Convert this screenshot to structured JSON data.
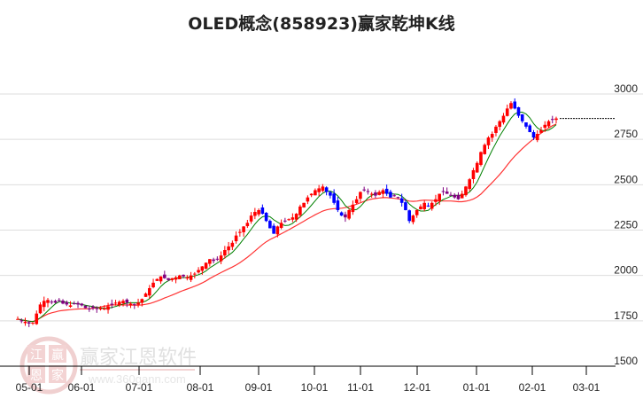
{
  "title": "OLED概念(858923)赢家乾坤K线",
  "watermark": {
    "brand": "赢家江恩软件",
    "url": "www.360gann.com",
    "seal_chars": [
      "江",
      "赢",
      "恩",
      "家"
    ]
  },
  "colors": {
    "up": "#ff0000",
    "down_blue": "#0000ff",
    "down_purple": "#800080",
    "ma_short": "#008000",
    "ma_long": "#ff3333",
    "grid": "#dddddd",
    "axis": "#000000",
    "last_price_line": "#000000"
  },
  "chart_data": {
    "type": "candlestick",
    "title": "OLED概念(858923)赢家乾坤K线",
    "xlabel": "",
    "ylabel": "",
    "ylim": [
      1500,
      3000
    ],
    "yticks": [
      1500,
      1750,
      2000,
      2250,
      2500,
      2750,
      3000
    ],
    "xticks": [
      "05-01",
      "06-01",
      "07-01",
      "08-01",
      "09-01",
      "10-01",
      "11-01",
      "12-01",
      "01-01",
      "02-01",
      "03-01"
    ],
    "grid": true,
    "last_price": 2865,
    "series": [
      {
        "name": "close",
        "values": [
          1760,
          1750,
          1745,
          1735,
          1740,
          1790,
          1840,
          1860,
          1865,
          1855,
          1850,
          1860,
          1845,
          1840,
          1835,
          1845,
          1840,
          1835,
          1820,
          1815,
          1820,
          1815,
          1820,
          1818,
          1830,
          1840,
          1850,
          1855,
          1860,
          1850,
          1845,
          1840,
          1850,
          1870,
          1900,
          1930,
          1960,
          1980,
          1995,
          1985,
          1975,
          1985,
          1990,
          2000,
          1995,
          1990,
          2000,
          2010,
          2030,
          2050,
          2070,
          2090,
          2080,
          2090,
          2110,
          2140,
          2160,
          2180,
          2220,
          2240,
          2270,
          2290,
          2330,
          2350,
          2360,
          2340,
          2300,
          2260,
          2230,
          2270,
          2290,
          2300,
          2310,
          2320,
          2340,
          2380,
          2400,
          2430,
          2450,
          2470,
          2480,
          2490,
          2460,
          2440,
          2400,
          2360,
          2330,
          2320,
          2360,
          2390,
          2420,
          2460,
          2470,
          2460,
          2450,
          2440,
          2460,
          2470,
          2450,
          2430,
          2440,
          2430,
          2400,
          2360,
          2300,
          2330,
          2360,
          2380,
          2400,
          2380,
          2400,
          2420,
          2450,
          2460,
          2450,
          2440,
          2430,
          2420,
          2450,
          2490,
          2530,
          2580,
          2620,
          2680,
          2720,
          2760,
          2780,
          2820,
          2850,
          2880,
          2920,
          2950,
          2920,
          2880,
          2850,
          2820,
          2790,
          2760,
          2780,
          2800,
          2830,
          2850,
          2860,
          2865
        ]
      },
      {
        "name": "MA-short",
        "color": "#008000"
      },
      {
        "name": "MA-long",
        "color": "#ff3333"
      }
    ]
  }
}
